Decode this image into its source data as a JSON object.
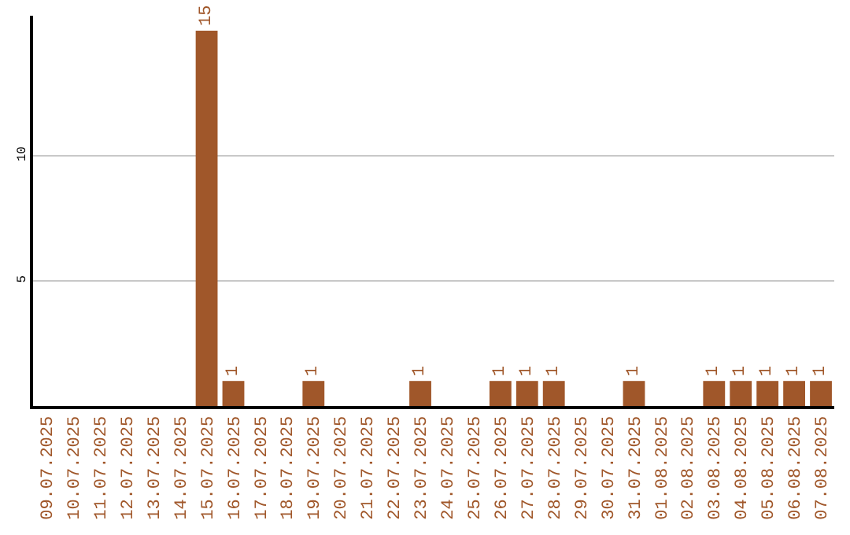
{
  "chart_data": {
    "type": "bar",
    "categories": [
      "09.07.2025",
      "10.07.2025",
      "11.07.2025",
      "12.07.2025",
      "13.07.2025",
      "14.07.2025",
      "15.07.2025",
      "16.07.2025",
      "17.07.2025",
      "18.07.2025",
      "19.07.2025",
      "20.07.2025",
      "21.07.2025",
      "22.07.2025",
      "23.07.2025",
      "24.07.2025",
      "25.07.2025",
      "26.07.2025",
      "27.07.2025",
      "28.07.2025",
      "29.07.2025",
      "30.07.2025",
      "31.07.2025",
      "01.08.2025",
      "02.08.2025",
      "03.08.2025",
      "04.08.2025",
      "05.08.2025",
      "06.08.2025",
      "07.08.2025"
    ],
    "values": [
      0,
      0,
      0,
      0,
      0,
      0,
      15,
      1,
      0,
      0,
      1,
      0,
      0,
      0,
      1,
      0,
      0,
      1,
      1,
      1,
      0,
      0,
      1,
      0,
      0,
      1,
      1,
      1,
      1,
      1
    ],
    "value_labels": [
      null,
      null,
      null,
      null,
      null,
      null,
      "15",
      "1",
      null,
      null,
      "1",
      null,
      null,
      null,
      "1",
      null,
      null,
      "1",
      "1",
      "1",
      null,
      null,
      "1",
      null,
      null,
      "1",
      "1",
      "1",
      "1",
      "1"
    ],
    "color": "#a0572a",
    "ylim": [
      0,
      15.6
    ],
    "yticks": [
      5,
      10
    ],
    "grid": "y",
    "legend": false
  }
}
